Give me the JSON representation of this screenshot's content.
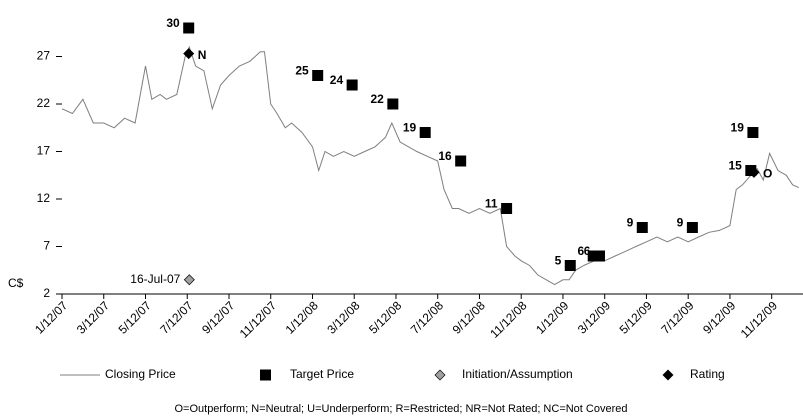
{
  "chart_data": {
    "type": "line",
    "y_label": "C$",
    "xlim": [
      0,
      35.5
    ],
    "xticks": [
      {
        "value": 0,
        "label": "1/12/07"
      },
      {
        "value": 2,
        "label": "3/12/07"
      },
      {
        "value": 4,
        "label": "5/12/07"
      },
      {
        "value": 6,
        "label": "7/12/07"
      },
      {
        "value": 8,
        "label": "9/12/07"
      },
      {
        "value": 10,
        "label": "11/12/07"
      },
      {
        "value": 12,
        "label": "1/12/08"
      },
      {
        "value": 14,
        "label": "3/12/08"
      },
      {
        "value": 16,
        "label": "5/12/08"
      },
      {
        "value": 18,
        "label": "7/12/08"
      },
      {
        "value": 20,
        "label": "9/12/08"
      },
      {
        "value": 22,
        "label": "11/12/08"
      },
      {
        "value": 24,
        "label": "1/12/09"
      },
      {
        "value": 26,
        "label": "3/12/09"
      },
      {
        "value": 28,
        "label": "5/12/09"
      },
      {
        "value": 30,
        "label": "7/12/09"
      },
      {
        "value": 32,
        "label": "9/12/09"
      },
      {
        "value": 34,
        "label": "11/12/09"
      }
    ],
    "ylim": [
      2,
      31
    ],
    "yticks": [
      2,
      7,
      12,
      17,
      22,
      27
    ],
    "series": [
      {
        "name": "Closing Price",
        "marker": "line",
        "color": "#7f7f7f",
        "x": [
          0,
          0.5,
          1,
          1.5,
          2,
          2.5,
          3,
          3.5,
          4,
          4.3,
          4.7,
          5,
          5.5,
          5.9,
          6.1,
          6.4,
          6.8,
          7.2,
          7.6,
          8,
          8.5,
          9,
          9.5,
          9.7,
          10,
          10.3,
          10.7,
          11,
          11.5,
          12,
          12.3,
          12.6,
          13,
          13.5,
          14,
          14.5,
          15,
          15.5,
          15.8,
          16.2,
          16.6,
          17,
          17.5,
          18,
          18.3,
          18.7,
          19,
          19.5,
          20,
          20.5,
          21,
          21.3,
          21.7,
          22,
          22.4,
          22.8,
          23.2,
          23.6,
          24,
          24.3,
          24.6,
          25,
          25.5,
          26,
          26.5,
          27,
          27.5,
          28,
          28.5,
          29,
          29.5,
          30,
          30.5,
          31,
          31.5,
          32,
          32.3,
          32.6,
          33,
          33.3,
          33.6,
          33.9,
          34.3,
          34.7,
          35,
          35.3
        ],
        "values": [
          21.5,
          21,
          22.5,
          20,
          20,
          19.5,
          20.5,
          20,
          26,
          22.5,
          23,
          22.5,
          23,
          27,
          28,
          26,
          25.5,
          21.5,
          24,
          25,
          26,
          26.5,
          27.5,
          27.5,
          22,
          21,
          19.5,
          20,
          19,
          17.5,
          15,
          17,
          16.5,
          17,
          16.5,
          17,
          17.5,
          18.5,
          20,
          18,
          17.5,
          17,
          16.5,
          16,
          13,
          11,
          11,
          10.5,
          11,
          10.5,
          11,
          7,
          6,
          5.5,
          5,
          4,
          3.5,
          3,
          3.5,
          3.5,
          4.5,
          5,
          5.5,
          5.5,
          6,
          6.5,
          7,
          7.5,
          8,
          7.5,
          8,
          7.5,
          8,
          8.5,
          8.7,
          9.2,
          13,
          13.5,
          14.5,
          15.2,
          14,
          16.8,
          15,
          14.5,
          13.5,
          13.2
        ]
      },
      {
        "name": "Target Price",
        "marker": "square",
        "color": "#000000",
        "x": [
          6.07,
          12.25,
          13.9,
          15.85,
          17.4,
          19.1,
          21.3,
          24.35,
          25.45,
          25.75,
          27.8,
          30.2,
          33.0,
          33.1
        ],
        "values": [
          30,
          25,
          24,
          22,
          19,
          16,
          11,
          5,
          6,
          6,
          9,
          9,
          15,
          19
        ]
      },
      {
        "name": "Initiation/Assumption",
        "marker": "diamond",
        "color": "#a0a0a0",
        "x": [
          6.1
        ],
        "values": [
          3.5
        ],
        "labels": [
          "16-Jul-07"
        ]
      },
      {
        "name": "Rating",
        "marker": "diamond",
        "color": "#000000",
        "x": [
          6.07,
          33.15
        ],
        "values": [
          27.3,
          14.8
        ],
        "labels": [
          "N",
          "O"
        ]
      }
    ],
    "footnote": "O=Outperform; N=Neutral; U=Underperform; R=Restricted; NR=Not Rated; NC=Not Covered"
  }
}
